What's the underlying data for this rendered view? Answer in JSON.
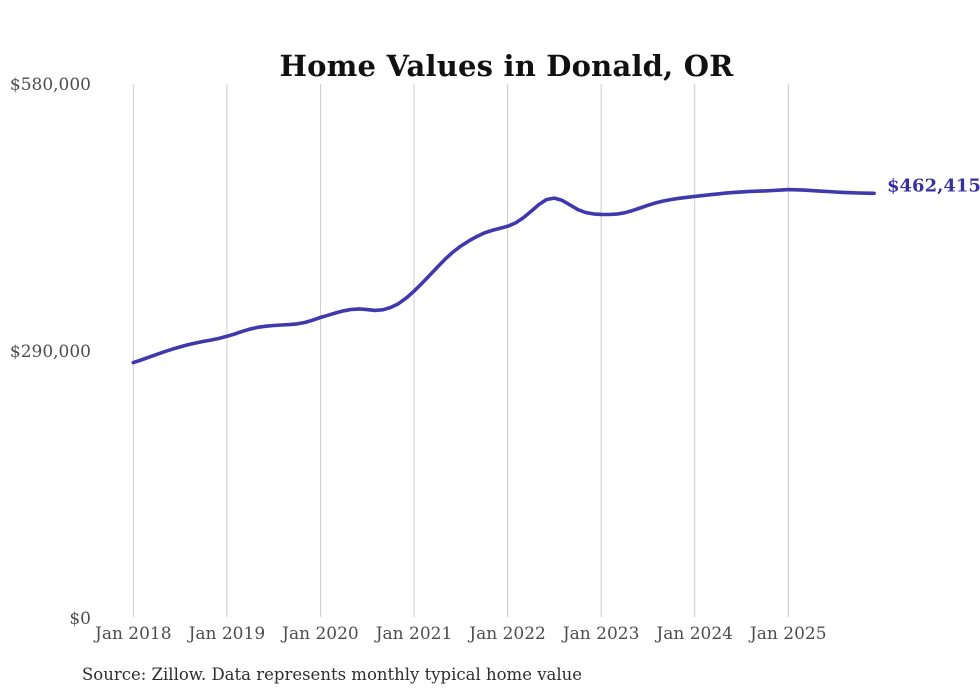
{
  "page": {
    "background": "#ffffff"
  },
  "chart_data": {
    "type": "line",
    "title": "Home Values in Donald, OR",
    "source": "Source: Zillow. Data represents monthly typical home value",
    "end_label": "$462,415",
    "latest_value": 462415,
    "x_start": "Jan 2018",
    "x_interval": "month",
    "x_ticks": [
      "Jan 2018",
      "Jan 2019",
      "Jan 2020",
      "Jan 2021",
      "Jan 2022",
      "Jan 2023",
      "Jan 2024",
      "Jan 2025"
    ],
    "y_ticks": [
      {
        "label": "$580,000",
        "value": 580000
      },
      {
        "label": "$290,000",
        "value": 290000
      },
      {
        "label": "$0",
        "value": 0
      }
    ],
    "ylim": [
      0,
      580000
    ],
    "grid": "vertical-only",
    "legend": "none",
    "line_color": "#4038ad",
    "end_label_color": "#39319f",
    "gridline_color": "#cbcbcb",
    "series": [
      {
        "name": "Typical home value",
        "values": [
          278500,
          281300,
          284400,
          287400,
          290300,
          293000,
          295500,
          297800,
          299800,
          301500,
          303000,
          304800,
          307000,
          309500,
          312500,
          315000,
          316800,
          318000,
          318800,
          319300,
          319800,
          320500,
          322000,
          324500,
          327500,
          330000,
          332500,
          334800,
          336300,
          336800,
          336000,
          335200,
          335800,
          338300,
          342500,
          348500,
          356000,
          364400,
          373200,
          382200,
          390900,
          398600,
          405000,
          410400,
          415200,
          419200,
          422100,
          424200,
          426500,
          430100,
          435600,
          442700,
          450100,
          455600,
          457200,
          454700,
          449800,
          444700,
          441500,
          440000,
          439400,
          439300,
          439800,
          441200,
          443600,
          446400,
          449300,
          451900,
          454000,
          455600,
          456900,
          458000,
          459000,
          459900,
          460800,
          461700,
          462600,
          463300,
          463900,
          464400,
          464700,
          465000,
          465400,
          465900,
          466400,
          466200,
          465800,
          465300,
          464800,
          464300,
          463800,
          463400,
          463000,
          462700,
          462500,
          462415
        ]
      }
    ]
  }
}
